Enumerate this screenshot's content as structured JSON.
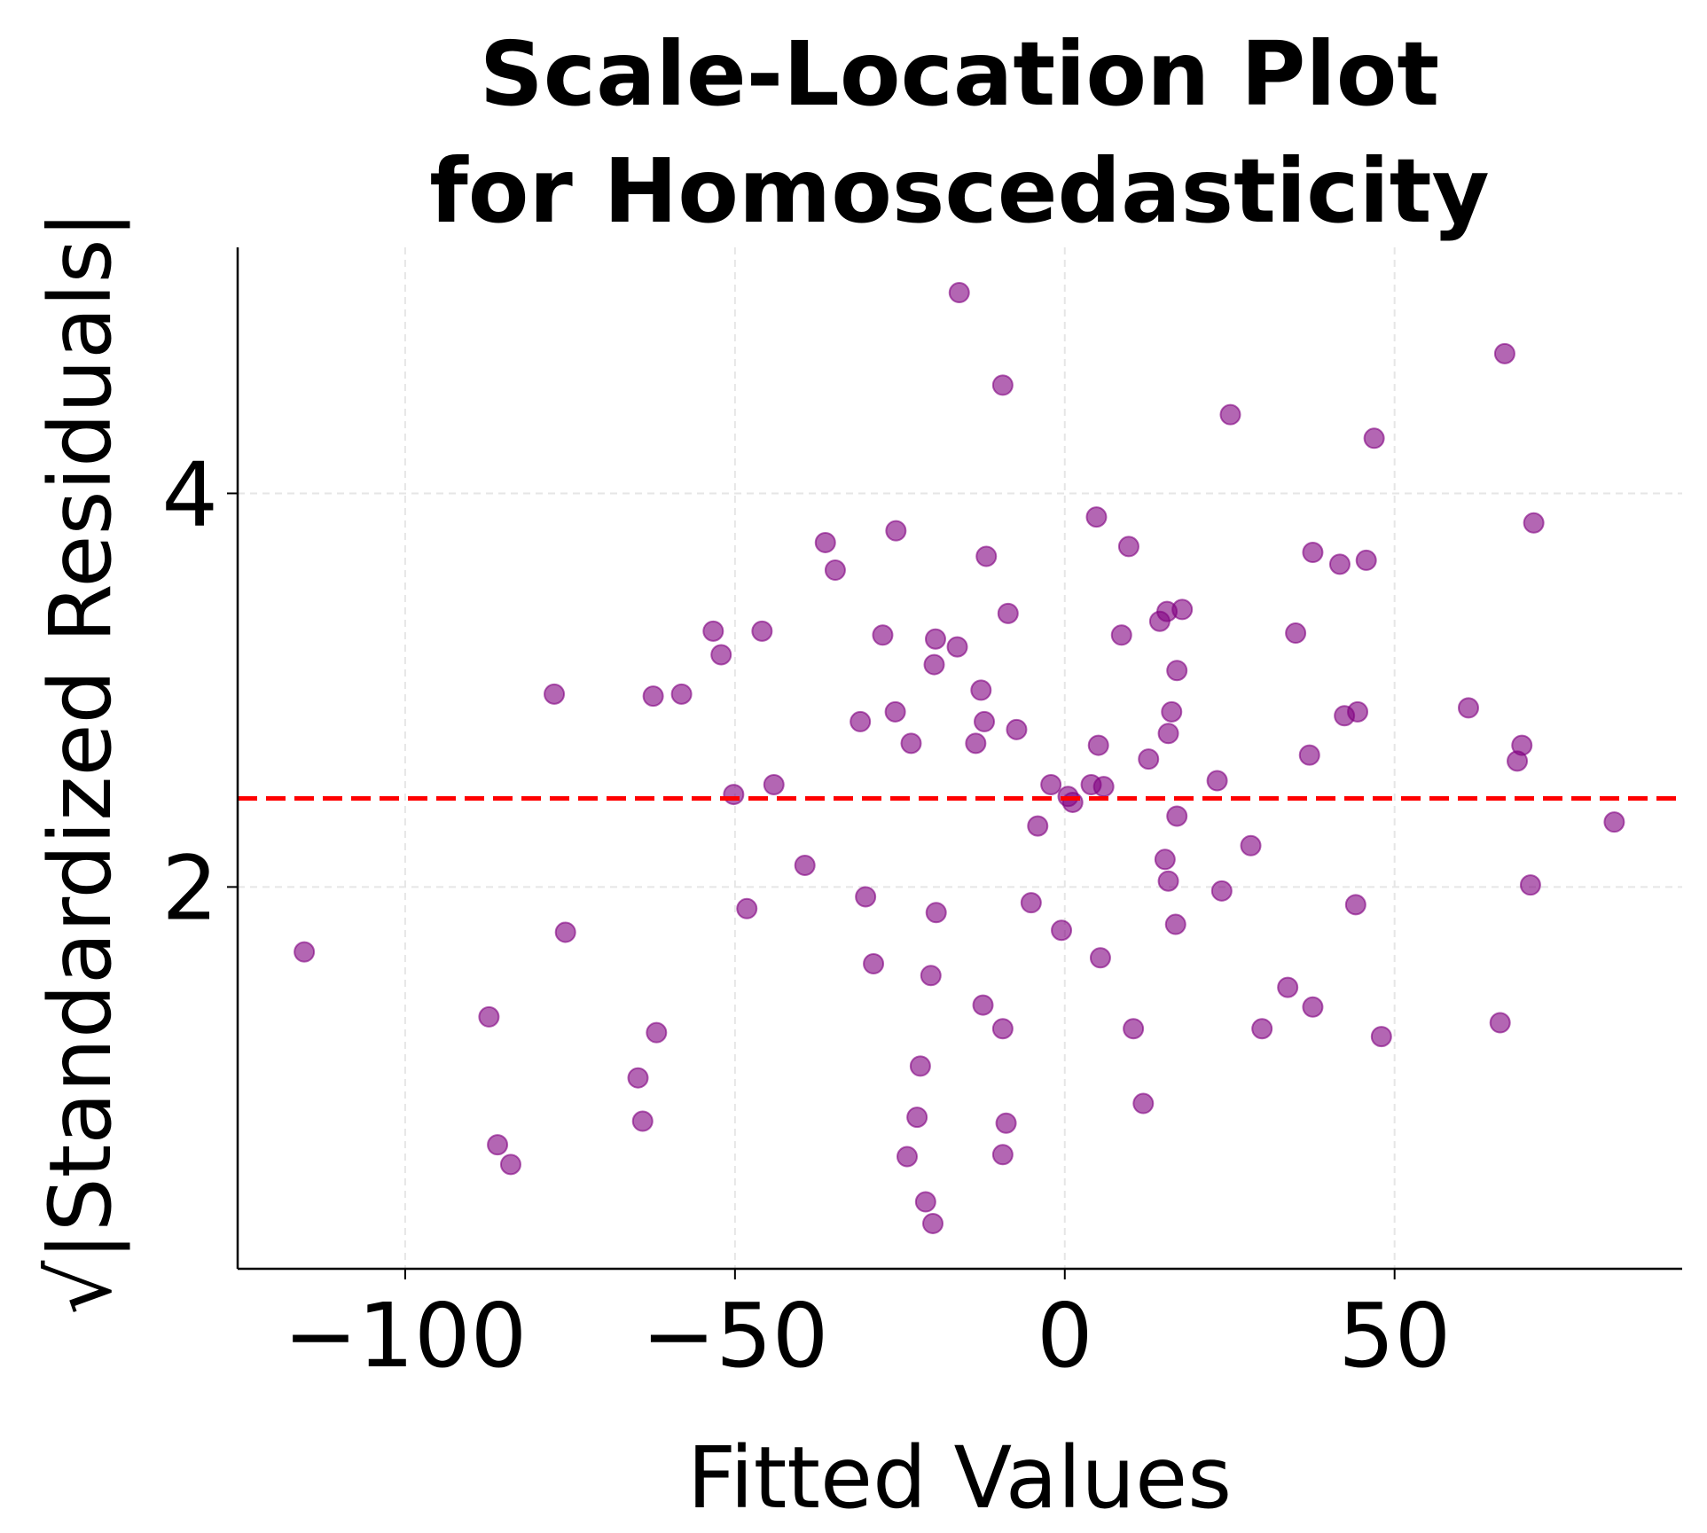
{
  "chart_data": {
    "type": "scatter",
    "title": [
      "Scale-Location Plot",
      "for Homoscedasticity"
    ],
    "xlabel": "Fitted Values",
    "ylabel": "√|Standardized Residuals|",
    "xlim": [
      -125.4,
      93.6
    ],
    "ylim": [
      0.06,
      5.25
    ],
    "xticks": [
      {
        "value": -100,
        "label": "−100"
      },
      {
        "value": -50,
        "label": "−50"
      },
      0,
      50
    ],
    "yticks": [
      2,
      4
    ],
    "grid": true,
    "color": "#800080",
    "alpha": 0.6,
    "hline": {
      "value": 2.45,
      "color": "#ff0000"
    },
    "x": [
      -115.3,
      -87.3,
      -86.0,
      -84.0,
      -77.4,
      -75.7,
      -64.7,
      -64.0,
      -62.4,
      -61.9,
      -58.1,
      -53.3,
      -52.1,
      -50.2,
      -48.2,
      -45.9,
      -44.1,
      -39.4,
      -36.3,
      -34.8,
      -31.0,
      -30.2,
      -29.0,
      -27.6,
      -25.7,
      -25.6,
      -23.9,
      -23.3,
      -22.4,
      -21.9,
      -21.1,
      -20.3,
      -20.0,
      -19.8,
      -19.6,
      -19.5,
      -16.3,
      -16.0,
      -13.5,
      -12.7,
      -12.4,
      -12.2,
      -11.9,
      -9.4,
      -9.4,
      -9.4,
      -8.9,
      -8.6,
      -7.3,
      -5.1,
      -4.1,
      -2.1,
      -0.5,
      0.5,
      1.2,
      4.0,
      4.8,
      5.1,
      5.4,
      5.9,
      8.6,
      9.7,
      10.4,
      11.9,
      12.7,
      14.4,
      15.2,
      15.5,
      15.7,
      15.7,
      16.2,
      16.8,
      17.0,
      17.0,
      17.8,
      23.1,
      23.8,
      25.1,
      28.2,
      29.9,
      33.8,
      35.0,
      37.1,
      37.6,
      37.6,
      41.7,
      42.4,
      44.1,
      44.4,
      45.7,
      46.9,
      48.0,
      61.2,
      66.0,
      66.7,
      68.6,
      69.3,
      70.6,
      71.1,
      83.3
    ],
    "values": [
      1.67,
      1.34,
      0.69,
      0.59,
      2.98,
      1.77,
      1.03,
      0.81,
      2.97,
      1.26,
      2.98,
      3.3,
      3.18,
      2.47,
      1.89,
      3.3,
      2.52,
      2.11,
      3.75,
      3.61,
      2.84,
      1.95,
      1.61,
      3.28,
      2.89,
      3.81,
      0.63,
      2.73,
      0.83,
      1.09,
      0.4,
      1.55,
      0.29,
      3.13,
      3.26,
      1.87,
      3.22,
      5.02,
      2.73,
      3.0,
      1.4,
      2.84,
      3.68,
      4.55,
      0.64,
      1.28,
      0.8,
      3.39,
      2.8,
      1.92,
      2.31,
      2.52,
      1.78,
      2.46,
      2.43,
      2.52,
      3.88,
      2.72,
      1.64,
      2.51,
      3.28,
      3.73,
      1.28,
      0.9,
      2.65,
      3.35,
      2.14,
      3.4,
      2.03,
      2.78,
      2.89,
      1.81,
      3.1,
      2.36,
      3.41,
      2.54,
      1.98,
      4.4,
      2.21,
      1.28,
      1.49,
      3.29,
      2.67,
      3.7,
      1.39,
      3.64,
      2.87,
      1.91,
      2.89,
      3.66,
      4.28,
      1.24,
      2.91,
      1.31,
      4.71,
      2.64,
      2.72,
      2.01,
      3.85,
      2.33
    ]
  }
}
